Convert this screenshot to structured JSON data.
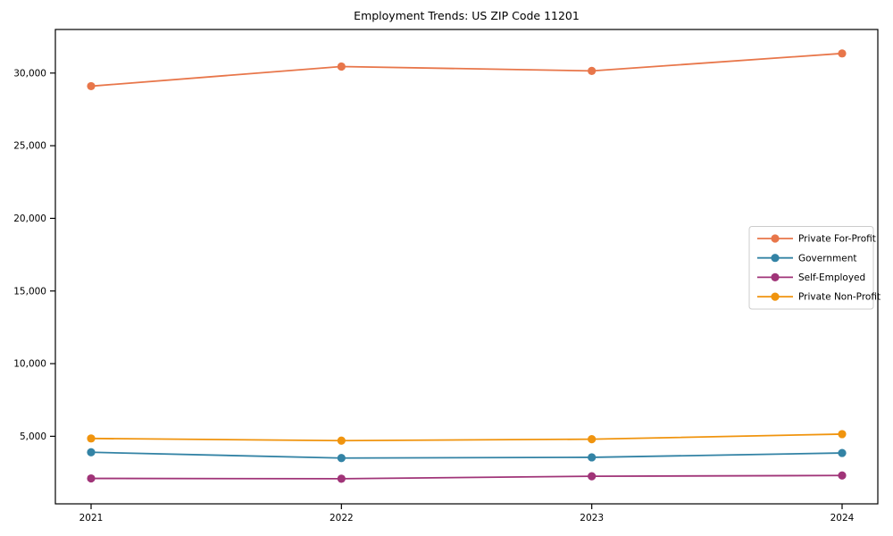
{
  "chart_data": {
    "type": "line",
    "title": "Employment Trends: US ZIP Code 11201",
    "xlabel": "",
    "ylabel": "",
    "x": [
      "2021",
      "2022",
      "2023",
      "2024"
    ],
    "series": [
      {
        "name": "Private For-Profit",
        "color": "#e8764a",
        "values": [
          29100,
          30450,
          30150,
          31350
        ]
      },
      {
        "name": "Government",
        "color": "#3383a5",
        "values": [
          3900,
          3500,
          3550,
          3850
        ]
      },
      {
        "name": "Self-Employed",
        "color": "#a03478",
        "values": [
          2100,
          2080,
          2250,
          2300
        ]
      },
      {
        "name": "Private Non-Profit",
        "color": "#f0940e",
        "values": [
          4850,
          4700,
          4800,
          5150
        ]
      }
    ],
    "yticks": [
      5000,
      10000,
      15000,
      20000,
      25000,
      30000
    ],
    "ytick_labels": [
      "5,000",
      "10,000",
      "15,000",
      "20,000",
      "25,000",
      "30,000"
    ],
    "ylim": [
      350,
      33000
    ],
    "grid": false,
    "legend_position": "center-right",
    "marker": "circle",
    "axis_color": "#000000",
    "legend_border_color": "#cccccc",
    "background": "#ffffff"
  }
}
